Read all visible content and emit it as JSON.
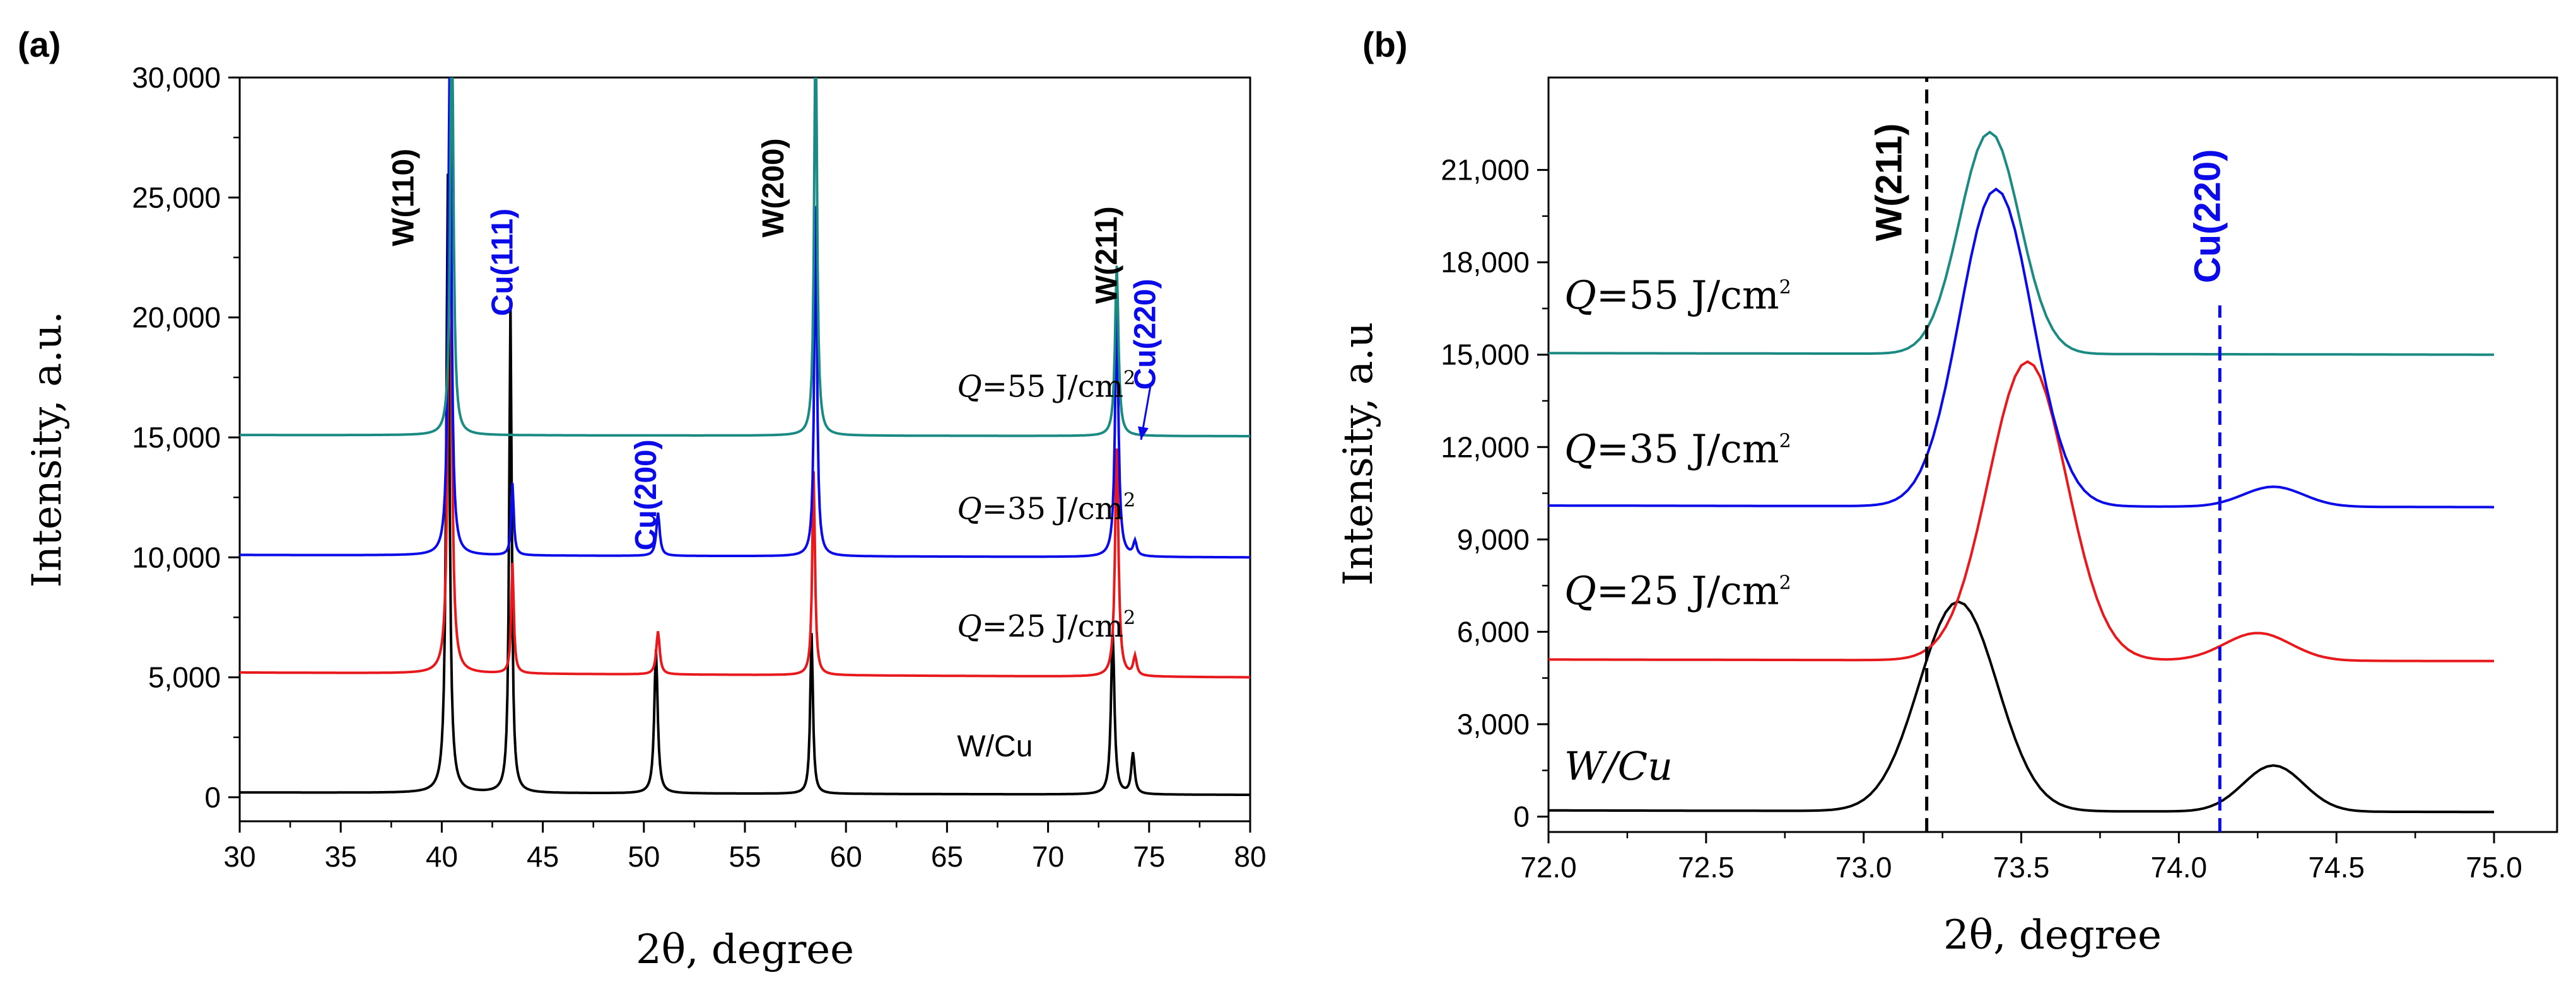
{
  "chart_data": [
    {
      "type": "line",
      "panel_label": "(a)",
      "xlabel": "2θ, degree",
      "ylabel": "Intensity, a.u.",
      "xlim": [
        30,
        80
      ],
      "ylim": [
        -1000,
        30000
      ],
      "xticks": [
        30,
        35,
        40,
        45,
        50,
        55,
        60,
        65,
        70,
        75,
        80
      ],
      "xtick_labels": [
        "30",
        "35",
        "40",
        "45",
        "50",
        "55",
        "60",
        "65",
        "70",
        "75",
        "80"
      ],
      "yticks": [
        0,
        5000,
        10000,
        15000,
        20000,
        25000,
        30000
      ],
      "ytick_labels": [
        "0",
        "5,000",
        "10,000",
        "15,000",
        "20,000",
        "25,000",
        "30,000"
      ],
      "grid": false,
      "series": [
        {
          "name": "W/Cu",
          "color": "#000000",
          "baseline": 200,
          "baseline_end": 100,
          "peaks": [
            [
              40.3,
              25800,
              0.18
            ],
            [
              43.4,
              20600,
              0.15
            ],
            [
              50.6,
              6000,
              0.2
            ],
            [
              58.3,
              6700,
              0.16
            ],
            [
              73.2,
              6800,
              0.2
            ],
            [
              74.2,
              1700,
              0.2
            ]
          ]
        },
        {
          "name": "Q=25 J/cm²",
          "color": "#e8191c",
          "baseline": 5200,
          "baseline_end": 5000,
          "peaks": [
            [
              40.4,
              26000,
              0.18
            ],
            [
              43.5,
              4600,
              0.15
            ],
            [
              50.7,
              1800,
              0.2
            ],
            [
              58.4,
              8500,
              0.16
            ],
            [
              73.4,
              9500,
              0.2
            ],
            [
              74.3,
              800,
              0.2
            ]
          ]
        },
        {
          "name": "Q=35 J/cm²",
          "color": "#0b0bea",
          "baseline": 10100,
          "baseline_end": 10000,
          "peaks": [
            [
              40.4,
              22000,
              0.18
            ],
            [
              43.5,
              3000,
              0.15
            ],
            [
              50.7,
              1800,
              0.2
            ],
            [
              58.5,
              14600,
              0.16
            ],
            [
              73.4,
              10200,
              0.2
            ],
            [
              74.3,
              600,
              0.2
            ]
          ]
        },
        {
          "name": "Q=55 J/cm²",
          "color": "#1a8a82",
          "baseline": 15100,
          "baseline_end": 15050,
          "peaks": [
            [
              40.5,
              18000,
              0.18
            ],
            [
              58.5,
              18000,
              0.16
            ],
            [
              73.4,
              7100,
              0.2
            ]
          ]
        }
      ],
      "series_labels": [
        {
          "prefix": "W/Cu",
          "suffix": "",
          "x": 65.5,
          "y": 1700
        },
        {
          "prefix": "Q",
          "suffix": "=25 J/cm",
          "x": 65.5,
          "y": 6700
        },
        {
          "prefix": "Q",
          "suffix": "=35 J/cm",
          "x": 65.5,
          "y": 11600
        },
        {
          "prefix": "Q",
          "suffix": "=55 J/cm",
          "x": 65.5,
          "y": 16700
        }
      ],
      "superscript": "2",
      "peak_annotations": [
        {
          "text": "W(110)",
          "color": "#000000",
          "x": 38.6,
          "y": 25000
        },
        {
          "text": "Cu(111)",
          "color": "#0b0bea",
          "x": 43.5,
          "y": 22300
        },
        {
          "text": "Cu(200)",
          "color": "#0b0bea",
          "x": 50.6,
          "y": 12600
        },
        {
          "text": "W(200)",
          "color": "#000000",
          "x": 56.9,
          "y": 25400
        },
        {
          "text": "W(211)",
          "color": "#000000",
          "x": 73.4,
          "y": 22600
        },
        {
          "text": "Cu(220)",
          "color": "#0b0bea",
          "x": 75.3,
          "y": 19300
        }
      ]
    },
    {
      "type": "line",
      "panel_label": "(b)",
      "xlabel": "2θ, degree",
      "ylabel": "Intensity, a.u",
      "xlim": [
        72.0,
        75.2
      ],
      "ylim": [
        -500,
        24000
      ],
      "xticks": [
        72.0,
        72.5,
        73.0,
        73.5,
        74.0,
        74.5,
        75.0
      ],
      "xtick_labels": [
        "72.0",
        "72.5",
        "73.0",
        "73.5",
        "74.0",
        "74.5",
        "75.0"
      ],
      "yticks": [
        0,
        3000,
        6000,
        9000,
        12000,
        15000,
        18000,
        21000
      ],
      "ytick_labels": [
        "0",
        "3,000",
        "6,000",
        "9,000",
        "12,000",
        "15,000",
        "18,000",
        "21,000"
      ],
      "grid": false,
      "series": [
        {
          "name": "W/Cu",
          "color": "#000000",
          "baseline": 200,
          "baseline_end": 150,
          "peaks": [
            [
              73.3,
              6800,
              0.26
            ],
            [
              74.3,
              1500,
              0.2
            ]
          ]
        },
        {
          "name": "Q=25 J/cm²",
          "color": "#e8191c",
          "baseline": 5100,
          "baseline_end": 5050,
          "peaks": [
            [
              73.52,
              9700,
              0.26
            ],
            [
              74.25,
              900,
              0.22
            ]
          ]
        },
        {
          "name": "Q=35 J/cm²",
          "color": "#0b0bea",
          "baseline": 10100,
          "baseline_end": 10050,
          "peaks": [
            [
              73.42,
              10300,
              0.24
            ],
            [
              74.3,
              650,
              0.2
            ]
          ]
        },
        {
          "name": "Q=55 J/cm²",
          "color": "#1a8a82",
          "baseline": 15050,
          "baseline_end": 15000,
          "peaks": [
            [
              73.4,
              7200,
              0.2
            ]
          ]
        }
      ],
      "series_labels": [
        {
          "prefix": "W/Cu",
          "suffix": "",
          "x": 72.05,
          "y": 1200
        },
        {
          "prefix": "Q",
          "suffix": "=25 J/cm",
          "x": 72.05,
          "y": 6900
        },
        {
          "prefix": "Q",
          "suffix": "=35 J/cm",
          "x": 72.05,
          "y": 11500
        },
        {
          "prefix": "Q",
          "suffix": "=55 J/cm",
          "x": 72.05,
          "y": 16500
        }
      ],
      "superscript": "2",
      "reference_lines": [
        {
          "label": "W(211)",
          "x": 73.2,
          "color": "#000000",
          "y_from": -500,
          "y_to": 24000,
          "label_x": 73.12,
          "label_y": 20600
        },
        {
          "label": "Cu(220)",
          "x": 74.13,
          "color": "#0b0bea",
          "y_from": -500,
          "y_to": 16600,
          "label_x": 74.13,
          "label_y": 19500
        }
      ]
    }
  ]
}
